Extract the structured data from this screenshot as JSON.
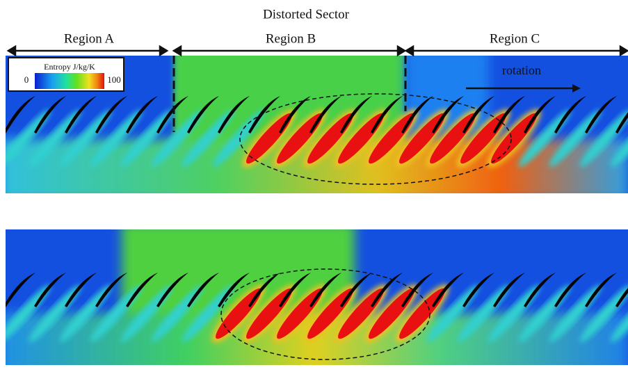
{
  "header": {
    "title": "Distorted Sector"
  },
  "regions": [
    "Region A",
    "Region B",
    "Region C"
  ],
  "annotation": "rotation",
  "colorbar": {
    "label": "Entropy J/kg/K",
    "min": 0,
    "max": 100
  }
}
